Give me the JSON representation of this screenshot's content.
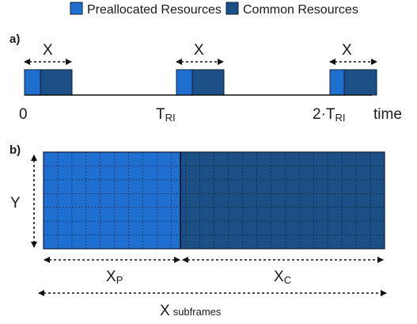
{
  "colors": {
    "preallocated": "#1f6fd1",
    "common": "#1c4f85"
  },
  "legend": {
    "items": [
      {
        "label": "Preallocated Resources",
        "color": "#1f6fd1"
      },
      {
        "label": "Common Resources",
        "color": "#1c4f85"
      }
    ]
  },
  "panel_a": {
    "label": "a)",
    "bracket_label": "X",
    "ticks": [
      {
        "main": "0",
        "sub": ""
      },
      {
        "main": "T",
        "sub": "RI"
      },
      {
        "main": "2·T",
        "sub": "RI"
      }
    ],
    "axis_label": "time"
  },
  "panel_b": {
    "label": "b)",
    "y_label": "Y",
    "xp_label": "X",
    "xp_sub": "P",
    "xc_label": "X",
    "xc_sub": "C",
    "total_label": "X",
    "total_suffix": "subframes"
  }
}
